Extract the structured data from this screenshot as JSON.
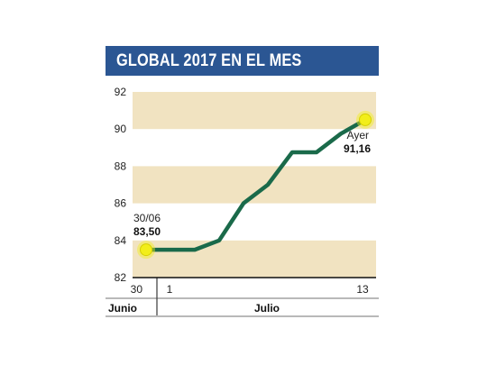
{
  "title": "GLOBAL 2017 EN EL MES",
  "colors": {
    "title_bg": "#2b5693",
    "band": "#f1e3c1",
    "line": "#1a6a4a",
    "marker_fill": "#f2ee1a",
    "axis": "#111111"
  },
  "chart_data": {
    "type": "line",
    "title": "GLOBAL 2017 EN EL MES",
    "ylim": [
      82,
      92
    ],
    "yticks": [
      "82",
      "84",
      "86",
      "88",
      "90",
      "92"
    ],
    "x_tick_labels": [
      "30",
      "1",
      "13"
    ],
    "month_labels": [
      "Junio",
      "Julio"
    ],
    "series": [
      {
        "x": [
          0,
          1,
          2,
          3,
          4,
          5,
          6,
          7,
          8,
          9
        ],
        "values": [
          83.5,
          83.5,
          83.5,
          84.0,
          86.0,
          87.0,
          88.75,
          88.75,
          89.75,
          90.5
        ]
      }
    ],
    "annotations": {
      "start_date": "30/06",
      "start_value": "83,50",
      "end_label": "Ayer",
      "end_value": "91,16"
    }
  }
}
